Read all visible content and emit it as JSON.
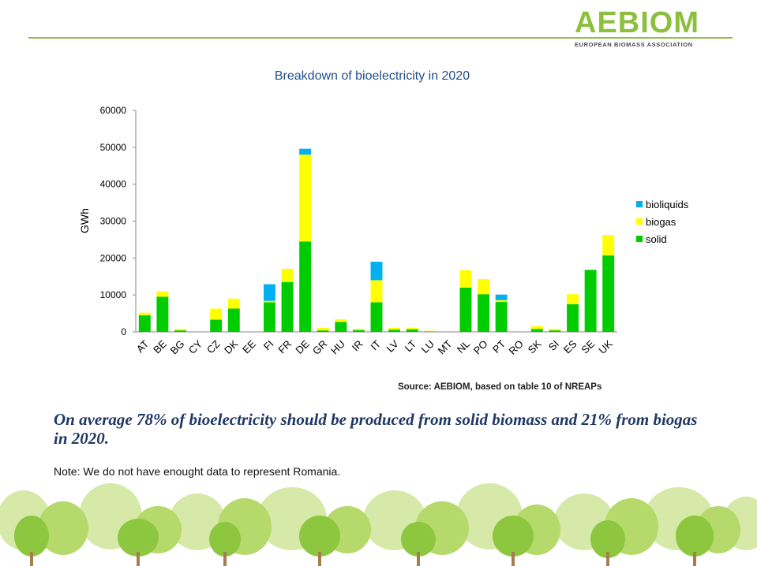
{
  "logo": {
    "wordmark": "AEBIOM",
    "tagline": "EUROPEAN BIOMASS ASSOCIATION",
    "color": "#8dbf3f"
  },
  "chart_data": {
    "type": "bar",
    "stacked": true,
    "title": "Breakdown of bioelectricity in 2020",
    "xlabel": "",
    "ylabel": "GWh",
    "ylim": [
      0,
      60000
    ],
    "yticks": [
      0,
      10000,
      20000,
      30000,
      40000,
      50000,
      60000
    ],
    "grid": false,
    "legend_position": "right",
    "categories": [
      "AT",
      "BE",
      "BG",
      "CY",
      "CZ",
      "DK",
      "EE",
      "FI",
      "FR",
      "DE",
      "GR",
      "HU",
      "IR",
      "IT",
      "LV",
      "LT",
      "LU",
      "MT",
      "NL",
      "PO",
      "PT",
      "RO",
      "SK",
      "SI",
      "ES",
      "SE",
      "UK"
    ],
    "series": [
      {
        "name": "solid",
        "color": "#00cc00",
        "values": [
          4500,
          9500,
          400,
          0,
          3300,
          6300,
          0,
          8000,
          13500,
          24500,
          400,
          2700,
          500,
          8000,
          600,
          700,
          100,
          0,
          12000,
          10200,
          8100,
          0,
          800,
          400,
          7500,
          16800,
          20700
        ]
      },
      {
        "name": "biogas",
        "color": "#ffff00",
        "values": [
          700,
          1500,
          400,
          0,
          3000,
          2700,
          0,
          400,
          3600,
          23500,
          700,
          700,
          300,
          6000,
          500,
          400,
          200,
          0,
          4700,
          4100,
          500,
          0,
          800,
          400,
          2700,
          0,
          5500
        ]
      },
      {
        "name": "bioliquids",
        "color": "#00b0f0",
        "values": [
          0,
          0,
          0,
          0,
          0,
          0,
          0,
          4500,
          0,
          1600,
          0,
          0,
          0,
          5000,
          0,
          0,
          0,
          0,
          0,
          0,
          1500,
          0,
          0,
          0,
          0,
          0,
          0
        ]
      }
    ],
    "legend_order": [
      "bioliquids",
      "biogas",
      "solid"
    ]
  },
  "source": "Source: AEBIOM, based on table 10 of NREAPs",
  "headline": "On average 78% of bioelectricity should be produced from solid biomass and 21% from biogas in 2020.",
  "note": "Note: We do not have enought data to represent  Romania.",
  "decor": {
    "tree_colors": [
      "#8dc63f",
      "#b5d96a",
      "#d6e9a8",
      "#a67c52"
    ]
  }
}
